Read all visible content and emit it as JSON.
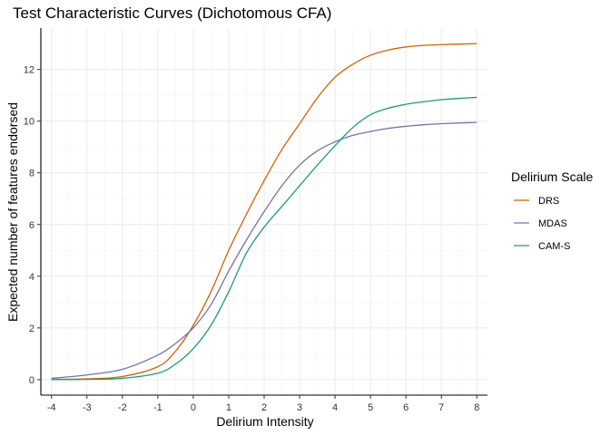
{
  "chart_data": {
    "type": "line",
    "title": "Test Characteristic Curves (Dichotomous CFA)",
    "xlabel": "Delirium Intensity",
    "ylabel": "Expected number of features endorsed",
    "xlim": [
      -4.3,
      8.3
    ],
    "ylim": [
      -0.6,
      13.6
    ],
    "x_ticks": [
      -4,
      -3,
      -2,
      -1,
      0,
      1,
      2,
      3,
      4,
      5,
      6,
      7,
      8
    ],
    "y_ticks": [
      0,
      2,
      4,
      6,
      8,
      10,
      12
    ],
    "grid": true,
    "legend": {
      "title": "Delirium Scale",
      "position": "right"
    },
    "x": [
      -4,
      -3,
      -2,
      -1,
      -0.5,
      0,
      0.5,
      1,
      1.5,
      2,
      2.5,
      3,
      3.5,
      4,
      4.5,
      5,
      5.5,
      6,
      6.5,
      7,
      7.5,
      8
    ],
    "series": [
      {
        "name": "DRS",
        "color": "#d95f02",
        "values": [
          0.01,
          0.03,
          0.12,
          0.5,
          1.1,
          2.1,
          3.4,
          5.0,
          6.4,
          7.7,
          8.9,
          9.9,
          10.9,
          11.7,
          12.2,
          12.55,
          12.75,
          12.87,
          12.93,
          12.96,
          12.98,
          13.0
        ]
      },
      {
        "name": "MDAS",
        "color": "#7570b3",
        "values": [
          0.05,
          0.18,
          0.4,
          0.95,
          1.4,
          2.0,
          2.9,
          4.2,
          5.4,
          6.5,
          7.5,
          8.3,
          8.85,
          9.2,
          9.45,
          9.6,
          9.72,
          9.8,
          9.86,
          9.9,
          9.93,
          9.95
        ]
      },
      {
        "name": "CAM-S",
        "color": "#1b9e77",
        "values": [
          0.0,
          0.01,
          0.05,
          0.25,
          0.6,
          1.2,
          2.1,
          3.4,
          4.9,
          5.9,
          6.7,
          7.5,
          8.3,
          9.05,
          9.75,
          10.25,
          10.5,
          10.65,
          10.75,
          10.83,
          10.88,
          10.92
        ]
      }
    ]
  }
}
